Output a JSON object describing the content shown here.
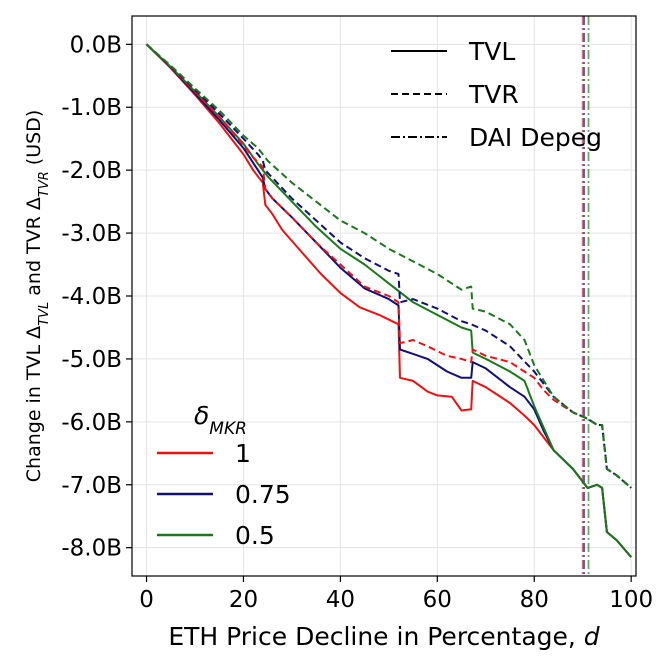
{
  "chart_data": {
    "type": "line",
    "title": "",
    "xlabel": "ETH Price Decline in Percentage, d",
    "ylabel_parts": [
      "Change in TVL Δ",
      "TVL",
      " and TVR Δ",
      "TVR",
      " (USD)"
    ],
    "xlim": [
      -3,
      101
    ],
    "ylim": [
      -8.45,
      0.45
    ],
    "xticks": [
      0,
      20,
      40,
      60,
      80,
      100
    ],
    "xtick_labels": [
      "0",
      "20",
      "40",
      "60",
      "80",
      "100"
    ],
    "yticks": [
      0,
      -1,
      -2,
      -3,
      -4,
      -5,
      -6,
      -7,
      -8
    ],
    "ytick_labels": [
      "0.0B",
      "-1.0B",
      "-2.0B",
      "-3.0B",
      "-4.0B",
      "-5.0B",
      "-6.0B",
      "-7.0B",
      "-8.0B"
    ],
    "grid": true,
    "style_legend": {
      "position": "top-right",
      "entries": [
        {
          "label": "TVL",
          "style": "solid"
        },
        {
          "label": "TVR",
          "style": "dashed"
        },
        {
          "label": "DAI Depeg",
          "style": "dashdot"
        }
      ]
    },
    "color_legend": {
      "position": "bottom-left",
      "title_base": "δ",
      "title_sub": "MKR",
      "entries": [
        {
          "label": "1",
          "color": "#ee1111"
        },
        {
          "label": "0.75",
          "color": "#10107a"
        },
        {
          "label": "0.5",
          "color": "#1a7a1a"
        }
      ]
    },
    "series": [
      {
        "name": "TVL δ=1",
        "color": "#ee1111",
        "style": "solid",
        "points": [
          [
            0,
            0
          ],
          [
            5,
            -0.38
          ],
          [
            10,
            -0.8
          ],
          [
            15,
            -1.25
          ],
          [
            20,
            -1.75
          ],
          [
            22,
            -2.0
          ],
          [
            24,
            -2.2
          ],
          [
            24.5,
            -2.55
          ],
          [
            26,
            -2.7
          ],
          [
            28,
            -2.95
          ],
          [
            32,
            -3.3
          ],
          [
            36,
            -3.65
          ],
          [
            40,
            -3.95
          ],
          [
            44,
            -4.18
          ],
          [
            48,
            -4.3
          ],
          [
            52,
            -4.45
          ],
          [
            52.3,
            -5.3
          ],
          [
            55,
            -5.35
          ],
          [
            58,
            -5.52
          ],
          [
            60,
            -5.58
          ],
          [
            63,
            -5.6
          ],
          [
            65,
            -5.82
          ],
          [
            67,
            -5.8
          ],
          [
            67.3,
            -5.35
          ],
          [
            70,
            -5.45
          ],
          [
            72,
            -5.55
          ],
          [
            75,
            -5.7
          ],
          [
            78,
            -5.9
          ],
          [
            80,
            -6.05
          ],
          [
            82,
            -6.25
          ],
          [
            84,
            -6.45
          ],
          [
            88,
            -6.75
          ],
          [
            91,
            -7.05
          ],
          [
            93,
            -7.0
          ],
          [
            94,
            -7.05
          ],
          [
            95,
            -7.75
          ],
          [
            97,
            -7.88
          ],
          [
            100,
            -8.15
          ]
        ]
      },
      {
        "name": "TVL δ=0.75",
        "color": "#10107a",
        "style": "solid",
        "points": [
          [
            0,
            0
          ],
          [
            5,
            -0.37
          ],
          [
            10,
            -0.78
          ],
          [
            15,
            -1.2
          ],
          [
            20,
            -1.65
          ],
          [
            23,
            -2.0
          ],
          [
            24,
            -2.12
          ],
          [
            24.5,
            -2.3
          ],
          [
            26,
            -2.45
          ],
          [
            30,
            -2.75
          ],
          [
            35,
            -3.15
          ],
          [
            40,
            -3.55
          ],
          [
            45,
            -3.88
          ],
          [
            50,
            -4.05
          ],
          [
            52,
            -4.15
          ],
          [
            52.3,
            -4.85
          ],
          [
            55,
            -4.92
          ],
          [
            58,
            -5.0
          ],
          [
            62,
            -5.2
          ],
          [
            65,
            -5.3
          ],
          [
            67,
            -5.3
          ],
          [
            67.3,
            -5.05
          ],
          [
            70,
            -5.15
          ],
          [
            75,
            -5.45
          ],
          [
            78,
            -5.6
          ],
          [
            80,
            -5.8
          ],
          [
            82,
            -6.15
          ],
          [
            84,
            -6.45
          ],
          [
            88,
            -6.75
          ],
          [
            91,
            -7.05
          ],
          [
            93,
            -7.0
          ],
          [
            94,
            -7.05
          ],
          [
            95,
            -7.75
          ],
          [
            97,
            -7.88
          ],
          [
            100,
            -8.15
          ]
        ]
      },
      {
        "name": "TVL δ=0.5",
        "color": "#1a7a1a",
        "style": "solid",
        "points": [
          [
            0,
            0
          ],
          [
            5,
            -0.36
          ],
          [
            10,
            -0.75
          ],
          [
            15,
            -1.15
          ],
          [
            20,
            -1.58
          ],
          [
            23,
            -1.9
          ],
          [
            25,
            -2.1
          ],
          [
            30,
            -2.5
          ],
          [
            35,
            -2.9
          ],
          [
            40,
            -3.25
          ],
          [
            45,
            -3.5
          ],
          [
            50,
            -3.8
          ],
          [
            55,
            -4.1
          ],
          [
            60,
            -4.3
          ],
          [
            65,
            -4.5
          ],
          [
            67,
            -4.55
          ],
          [
            67.3,
            -4.9
          ],
          [
            70,
            -5.0
          ],
          [
            75,
            -5.2
          ],
          [
            78,
            -5.35
          ],
          [
            80,
            -5.75
          ],
          [
            82,
            -6.1
          ],
          [
            84,
            -6.45
          ],
          [
            88,
            -6.75
          ],
          [
            91,
            -7.05
          ],
          [
            93,
            -7.0
          ],
          [
            94,
            -7.05
          ],
          [
            95,
            -7.75
          ],
          [
            97,
            -7.88
          ],
          [
            100,
            -8.15
          ]
        ]
      },
      {
        "name": "TVR δ=1",
        "color": "#ee1111",
        "style": "dashed",
        "points": [
          [
            0,
            0
          ],
          [
            5,
            -0.36
          ],
          [
            10,
            -0.75
          ],
          [
            15,
            -1.15
          ],
          [
            20,
            -1.6
          ],
          [
            22,
            -1.8
          ],
          [
            24,
            -1.95
          ],
          [
            24.5,
            -2.3
          ],
          [
            26,
            -2.45
          ],
          [
            30,
            -2.75
          ],
          [
            35,
            -3.15
          ],
          [
            40,
            -3.5
          ],
          [
            45,
            -3.85
          ],
          [
            50,
            -4.0
          ],
          [
            52,
            -4.1
          ],
          [
            52.3,
            -4.75
          ],
          [
            55,
            -4.7
          ],
          [
            58,
            -4.8
          ],
          [
            62,
            -4.95
          ],
          [
            65,
            -5.0
          ],
          [
            67,
            -5.05
          ],
          [
            67.3,
            -4.85
          ],
          [
            70,
            -4.95
          ],
          [
            75,
            -5.05
          ],
          [
            80,
            -5.3
          ],
          [
            82,
            -5.5
          ],
          [
            84,
            -5.65
          ],
          [
            88,
            -5.85
          ],
          [
            91,
            -5.95
          ],
          [
            93,
            -6.05
          ],
          [
            94,
            -6.05
          ],
          [
            95,
            -6.75
          ],
          [
            97,
            -6.85
          ],
          [
            100,
            -7.05
          ]
        ]
      },
      {
        "name": "TVR δ=0.75",
        "color": "#10107a",
        "style": "dashed",
        "points": [
          [
            0,
            0
          ],
          [
            5,
            -0.35
          ],
          [
            10,
            -0.72
          ],
          [
            15,
            -1.1
          ],
          [
            20,
            -1.5
          ],
          [
            23,
            -1.75
          ],
          [
            24,
            -1.85
          ],
          [
            24.5,
            -2.0
          ],
          [
            30,
            -2.45
          ],
          [
            35,
            -2.8
          ],
          [
            40,
            -3.15
          ],
          [
            45,
            -3.4
          ],
          [
            50,
            -3.6
          ],
          [
            52,
            -3.65
          ],
          [
            52.3,
            -4.1
          ],
          [
            55,
            -4.05
          ],
          [
            60,
            -4.2
          ],
          [
            65,
            -4.4
          ],
          [
            67,
            -4.45
          ],
          [
            70,
            -4.55
          ],
          [
            75,
            -4.8
          ],
          [
            80,
            -5.2
          ],
          [
            82,
            -5.4
          ],
          [
            84,
            -5.6
          ],
          [
            88,
            -5.85
          ],
          [
            91,
            -5.95
          ],
          [
            93,
            -6.05
          ],
          [
            94,
            -6.05
          ],
          [
            95,
            -6.75
          ],
          [
            97,
            -6.85
          ],
          [
            100,
            -7.05
          ]
        ]
      },
      {
        "name": "TVR δ=0.5",
        "color": "#1a7a1a",
        "style": "dashed",
        "points": [
          [
            0,
            0
          ],
          [
            5,
            -0.34
          ],
          [
            10,
            -0.7
          ],
          [
            15,
            -1.05
          ],
          [
            20,
            -1.45
          ],
          [
            23,
            -1.65
          ],
          [
            25,
            -1.85
          ],
          [
            30,
            -2.2
          ],
          [
            35,
            -2.5
          ],
          [
            40,
            -2.8
          ],
          [
            45,
            -3.0
          ],
          [
            50,
            -3.25
          ],
          [
            55,
            -3.45
          ],
          [
            60,
            -3.65
          ],
          [
            65,
            -3.9
          ],
          [
            67,
            -3.85
          ],
          [
            67.3,
            -4.2
          ],
          [
            70,
            -4.25
          ],
          [
            75,
            -4.45
          ],
          [
            78,
            -4.7
          ],
          [
            80,
            -5.1
          ],
          [
            82,
            -5.35
          ],
          [
            84,
            -5.6
          ],
          [
            88,
            -5.85
          ],
          [
            91,
            -5.95
          ],
          [
            93,
            -6.05
          ],
          [
            94,
            -6.05
          ],
          [
            95,
            -6.75
          ],
          [
            97,
            -6.85
          ],
          [
            100,
            -7.05
          ]
        ]
      }
    ],
    "depeg_lines": [
      {
        "name": "DAI Depeg δ=1",
        "x": 90.0,
        "color": "#ee1111"
      },
      {
        "name": "DAI Depeg δ=0.75",
        "x": 90.3,
        "color": "#10107a"
      },
      {
        "name": "DAI Depeg δ=0.5",
        "x": 91.2,
        "color": "#1a7a1a"
      }
    ]
  }
}
